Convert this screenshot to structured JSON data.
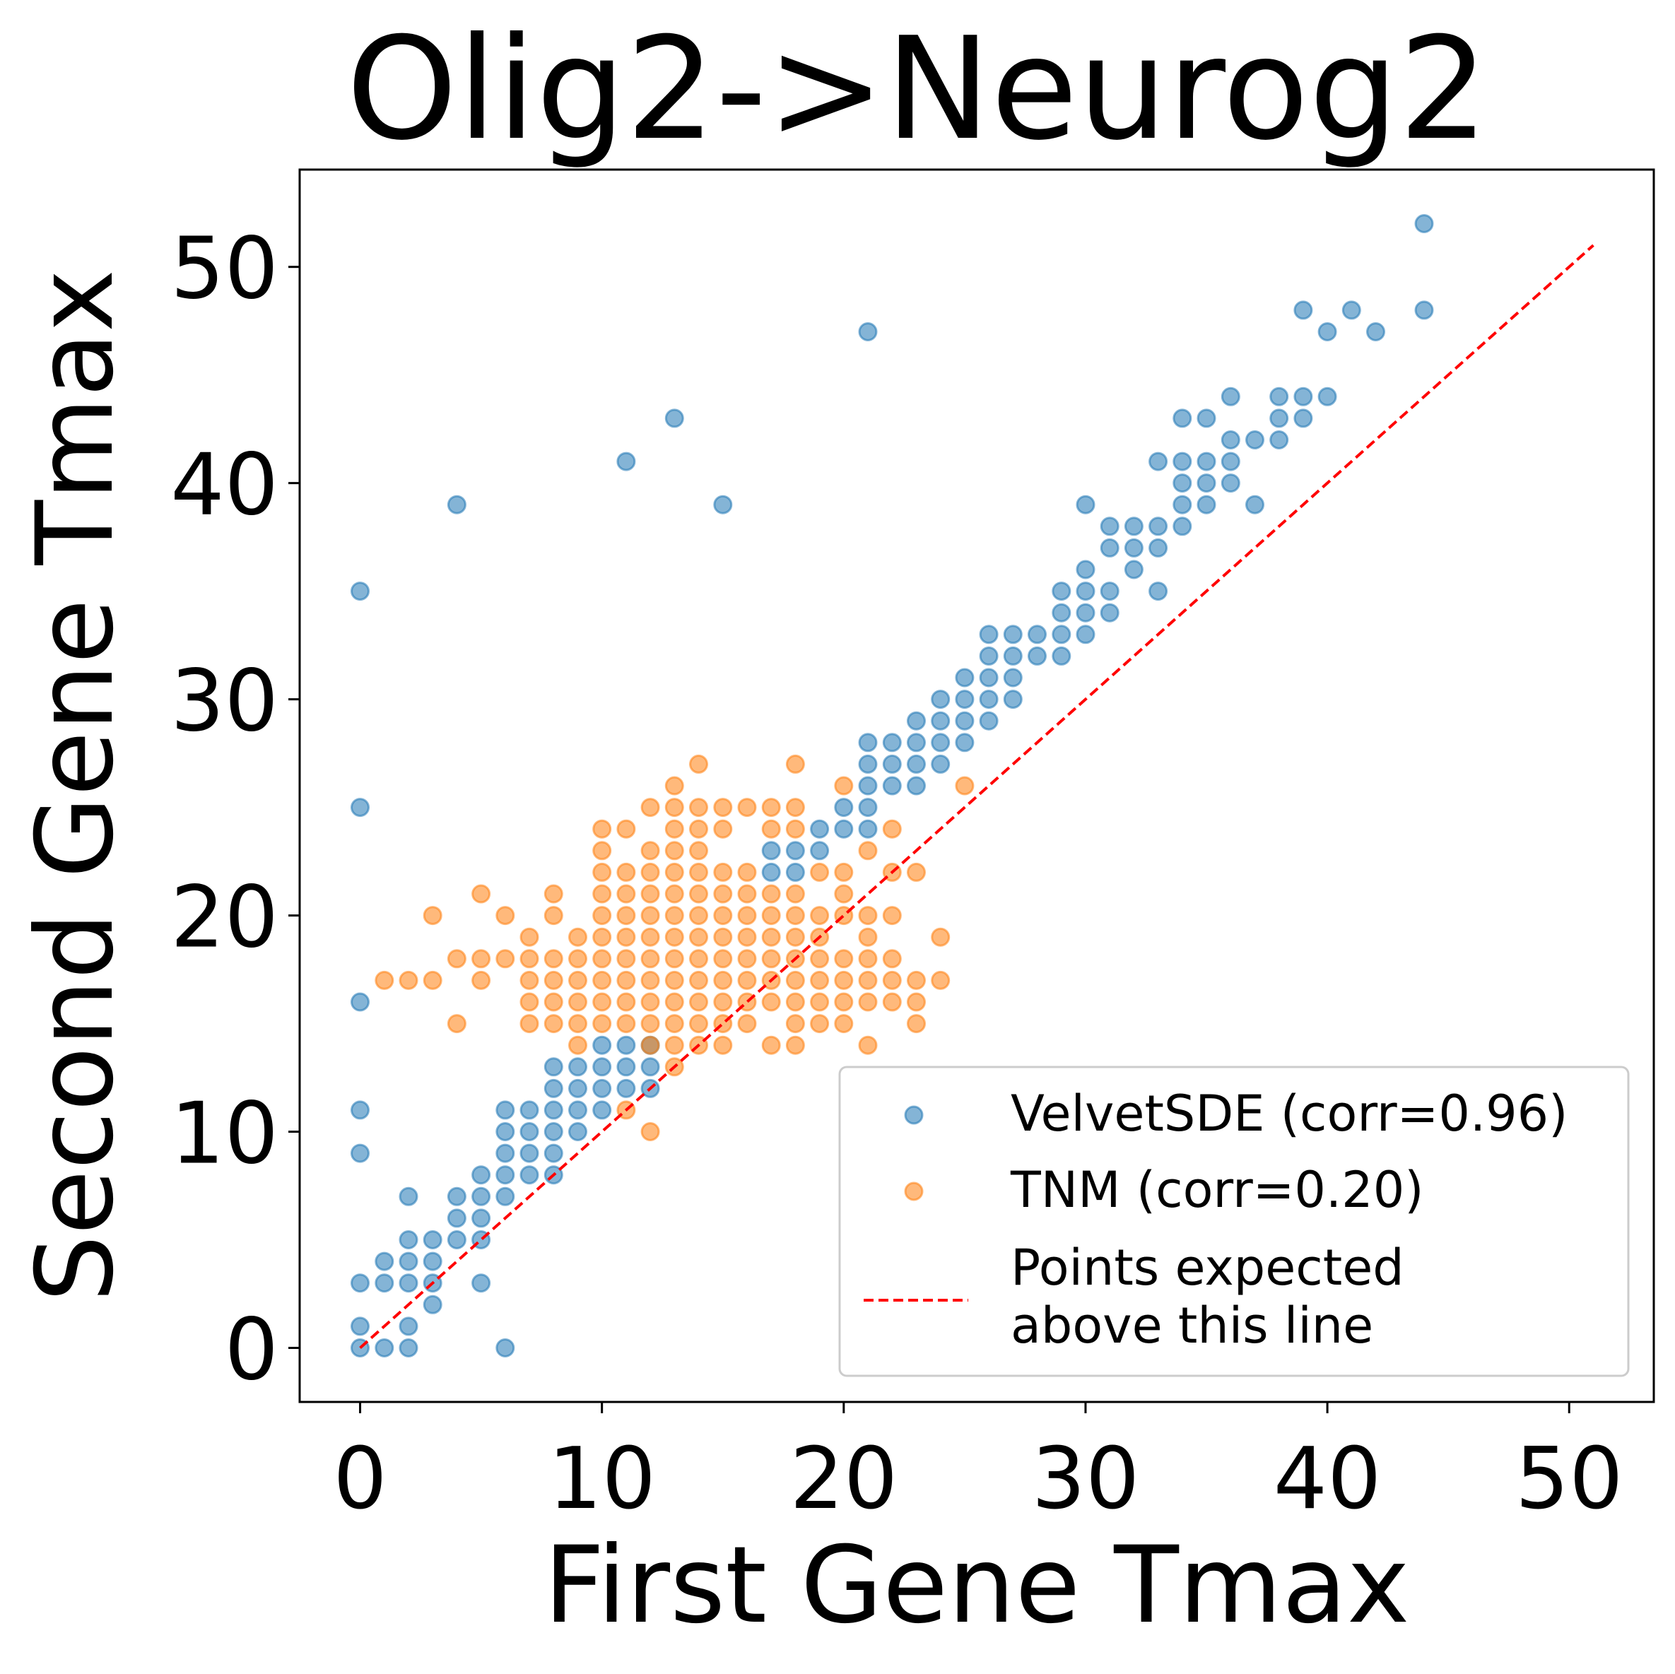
{
  "colors": {
    "velvet": "#1f77b4",
    "tnm": "#ff7f0e",
    "diag": "#ff0000"
  },
  "chart_data": {
    "type": "scatter",
    "title": "Olig2->Neurog2",
    "xlabel": "First Gene Tmax",
    "ylabel": "Second Gene Tmax",
    "xlim": [
      -2.5,
      53.5
    ],
    "ylim": [
      -2.5,
      54.5
    ],
    "xticks": [
      0,
      10,
      20,
      30,
      40,
      50
    ],
    "yticks": [
      0,
      10,
      20,
      30,
      40,
      50
    ],
    "grid": false,
    "legend_position": "lower-right",
    "series": [
      {
        "name": "VelvetSDE (corr=0.96)",
        "marker": "circle",
        "alpha": 0.55,
        "points": [
          [
            0,
            0
          ],
          [
            0,
            1
          ],
          [
            0,
            3
          ],
          [
            0,
            9
          ],
          [
            0,
            11
          ],
          [
            0,
            16
          ],
          [
            0,
            25
          ],
          [
            0,
            35
          ],
          [
            1,
            0
          ],
          [
            1,
            3
          ],
          [
            1,
            4
          ],
          [
            2,
            0
          ],
          [
            2,
            1
          ],
          [
            2,
            3
          ],
          [
            2,
            4
          ],
          [
            2,
            5
          ],
          [
            2,
            7
          ],
          [
            3,
            2
          ],
          [
            3,
            3
          ],
          [
            3,
            4
          ],
          [
            3,
            5
          ],
          [
            4,
            5
          ],
          [
            4,
            6
          ],
          [
            4,
            7
          ],
          [
            4,
            39
          ],
          [
            5,
            3
          ],
          [
            5,
            5
          ],
          [
            5,
            6
          ],
          [
            5,
            7
          ],
          [
            5,
            8
          ],
          [
            6,
            0
          ],
          [
            6,
            7
          ],
          [
            6,
            8
          ],
          [
            6,
            9
          ],
          [
            6,
            10
          ],
          [
            6,
            11
          ],
          [
            7,
            8
          ],
          [
            7,
            9
          ],
          [
            7,
            10
          ],
          [
            7,
            11
          ],
          [
            8,
            8
          ],
          [
            8,
            9
          ],
          [
            8,
            10
          ],
          [
            8,
            11
          ],
          [
            8,
            12
          ],
          [
            8,
            13
          ],
          [
            9,
            10
          ],
          [
            9,
            11
          ],
          [
            9,
            12
          ],
          [
            9,
            13
          ],
          [
            10,
            11
          ],
          [
            10,
            12
          ],
          [
            10,
            13
          ],
          [
            10,
            14
          ],
          [
            11,
            12
          ],
          [
            11,
            13
          ],
          [
            11,
            14
          ],
          [
            11,
            41
          ],
          [
            12,
            12
          ],
          [
            12,
            13
          ],
          [
            12,
            14
          ],
          [
            13,
            43
          ],
          [
            15,
            39
          ],
          [
            17,
            22
          ],
          [
            17,
            23
          ],
          [
            18,
            22
          ],
          [
            18,
            23
          ],
          [
            19,
            23
          ],
          [
            19,
            24
          ],
          [
            20,
            24
          ],
          [
            20,
            25
          ],
          [
            21,
            24
          ],
          [
            21,
            25
          ],
          [
            21,
            26
          ],
          [
            21,
            27
          ],
          [
            21,
            28
          ],
          [
            21,
            47
          ],
          [
            22,
            26
          ],
          [
            22,
            27
          ],
          [
            22,
            28
          ],
          [
            23,
            26
          ],
          [
            23,
            27
          ],
          [
            23,
            28
          ],
          [
            23,
            29
          ],
          [
            24,
            27
          ],
          [
            24,
            28
          ],
          [
            24,
            29
          ],
          [
            24,
            30
          ],
          [
            25,
            28
          ],
          [
            25,
            29
          ],
          [
            25,
            30
          ],
          [
            25,
            31
          ],
          [
            26,
            29
          ],
          [
            26,
            30
          ],
          [
            26,
            31
          ],
          [
            26,
            32
          ],
          [
            26,
            33
          ],
          [
            27,
            30
          ],
          [
            27,
            31
          ],
          [
            27,
            32
          ],
          [
            27,
            33
          ],
          [
            28,
            32
          ],
          [
            28,
            33
          ],
          [
            29,
            32
          ],
          [
            29,
            33
          ],
          [
            29,
            34
          ],
          [
            29,
            35
          ],
          [
            30,
            33
          ],
          [
            30,
            34
          ],
          [
            30,
            35
          ],
          [
            30,
            36
          ],
          [
            30,
            39
          ],
          [
            31,
            34
          ],
          [
            31,
            35
          ],
          [
            31,
            37
          ],
          [
            31,
            38
          ],
          [
            32,
            36
          ],
          [
            32,
            37
          ],
          [
            32,
            38
          ],
          [
            33,
            35
          ],
          [
            33,
            37
          ],
          [
            33,
            38
          ],
          [
            33,
            41
          ],
          [
            34,
            38
          ],
          [
            34,
            39
          ],
          [
            34,
            40
          ],
          [
            34,
            41
          ],
          [
            34,
            43
          ],
          [
            35,
            39
          ],
          [
            35,
            40
          ],
          [
            35,
            41
          ],
          [
            35,
            43
          ],
          [
            36,
            40
          ],
          [
            36,
            41
          ],
          [
            36,
            42
          ],
          [
            36,
            44
          ],
          [
            37,
            39
          ],
          [
            37,
            42
          ],
          [
            38,
            42
          ],
          [
            38,
            43
          ],
          [
            38,
            44
          ],
          [
            39,
            43
          ],
          [
            39,
            44
          ],
          [
            39,
            48
          ],
          [
            40,
            44
          ],
          [
            40,
            47
          ],
          [
            41,
            48
          ],
          [
            42,
            47
          ],
          [
            44,
            48
          ],
          [
            44,
            52
          ]
        ]
      },
      {
        "name": "TNM (corr=0.20)",
        "marker": "circle",
        "alpha": 0.55,
        "points": [
          [
            1,
            17
          ],
          [
            2,
            17
          ],
          [
            3,
            17
          ],
          [
            3,
            20
          ],
          [
            4,
            15
          ],
          [
            4,
            18
          ],
          [
            5,
            17
          ],
          [
            5,
            18
          ],
          [
            5,
            21
          ],
          [
            6,
            18
          ],
          [
            6,
            20
          ],
          [
            7,
            15
          ],
          [
            7,
            16
          ],
          [
            7,
            17
          ],
          [
            7,
            18
          ],
          [
            7,
            19
          ],
          [
            8,
            15
          ],
          [
            8,
            16
          ],
          [
            8,
            17
          ],
          [
            8,
            18
          ],
          [
            8,
            20
          ],
          [
            8,
            21
          ],
          [
            9,
            14
          ],
          [
            9,
            15
          ],
          [
            9,
            16
          ],
          [
            9,
            17
          ],
          [
            9,
            18
          ],
          [
            9,
            19
          ],
          [
            10,
            15
          ],
          [
            10,
            16
          ],
          [
            10,
            17
          ],
          [
            10,
            18
          ],
          [
            10,
            19
          ],
          [
            10,
            20
          ],
          [
            10,
            21
          ],
          [
            10,
            22
          ],
          [
            10,
            23
          ],
          [
            10,
            24
          ],
          [
            11,
            11
          ],
          [
            11,
            15
          ],
          [
            11,
            16
          ],
          [
            11,
            17
          ],
          [
            11,
            18
          ],
          [
            11,
            19
          ],
          [
            11,
            20
          ],
          [
            11,
            21
          ],
          [
            11,
            22
          ],
          [
            11,
            24
          ],
          [
            12,
            10
          ],
          [
            12,
            14
          ],
          [
            12,
            15
          ],
          [
            12,
            16
          ],
          [
            12,
            17
          ],
          [
            12,
            18
          ],
          [
            12,
            19
          ],
          [
            12,
            20
          ],
          [
            12,
            21
          ],
          [
            12,
            22
          ],
          [
            12,
            23
          ],
          [
            12,
            25
          ],
          [
            13,
            13
          ],
          [
            13,
            14
          ],
          [
            13,
            15
          ],
          [
            13,
            16
          ],
          [
            13,
            17
          ],
          [
            13,
            18
          ],
          [
            13,
            19
          ],
          [
            13,
            20
          ],
          [
            13,
            21
          ],
          [
            13,
            22
          ],
          [
            13,
            23
          ],
          [
            13,
            24
          ],
          [
            13,
            25
          ],
          [
            13,
            26
          ],
          [
            14,
            14
          ],
          [
            14,
            15
          ],
          [
            14,
            16
          ],
          [
            14,
            17
          ],
          [
            14,
            18
          ],
          [
            14,
            19
          ],
          [
            14,
            20
          ],
          [
            14,
            21
          ],
          [
            14,
            22
          ],
          [
            14,
            23
          ],
          [
            14,
            24
          ],
          [
            14,
            25
          ],
          [
            14,
            27
          ],
          [
            15,
            14
          ],
          [
            15,
            15
          ],
          [
            15,
            16
          ],
          [
            15,
            17
          ],
          [
            15,
            18
          ],
          [
            15,
            19
          ],
          [
            15,
            20
          ],
          [
            15,
            21
          ],
          [
            15,
            22
          ],
          [
            15,
            24
          ],
          [
            15,
            25
          ],
          [
            16,
            15
          ],
          [
            16,
            16
          ],
          [
            16,
            17
          ],
          [
            16,
            18
          ],
          [
            16,
            19
          ],
          [
            16,
            20
          ],
          [
            16,
            21
          ],
          [
            16,
            22
          ],
          [
            16,
            25
          ],
          [
            17,
            14
          ],
          [
            17,
            16
          ],
          [
            17,
            17
          ],
          [
            17,
            18
          ],
          [
            17,
            19
          ],
          [
            17,
            20
          ],
          [
            17,
            21
          ],
          [
            17,
            24
          ],
          [
            17,
            25
          ],
          [
            18,
            14
          ],
          [
            18,
            15
          ],
          [
            18,
            16
          ],
          [
            18,
            17
          ],
          [
            18,
            18
          ],
          [
            18,
            19
          ],
          [
            18,
            20
          ],
          [
            18,
            21
          ],
          [
            18,
            24
          ],
          [
            18,
            25
          ],
          [
            18,
            27
          ],
          [
            19,
            15
          ],
          [
            19,
            16
          ],
          [
            19,
            17
          ],
          [
            19,
            18
          ],
          [
            19,
            19
          ],
          [
            19,
            20
          ],
          [
            19,
            22
          ],
          [
            20,
            15
          ],
          [
            20,
            16
          ],
          [
            20,
            17
          ],
          [
            20,
            18
          ],
          [
            20,
            20
          ],
          [
            20,
            21
          ],
          [
            20,
            22
          ],
          [
            20,
            26
          ],
          [
            21,
            14
          ],
          [
            21,
            16
          ],
          [
            21,
            17
          ],
          [
            21,
            18
          ],
          [
            21,
            19
          ],
          [
            21,
            20
          ],
          [
            21,
            23
          ],
          [
            22,
            16
          ],
          [
            22,
            17
          ],
          [
            22,
            18
          ],
          [
            22,
            20
          ],
          [
            22,
            22
          ],
          [
            22,
            24
          ],
          [
            23,
            15
          ],
          [
            23,
            16
          ],
          [
            23,
            17
          ],
          [
            23,
            22
          ],
          [
            24,
            17
          ],
          [
            24,
            19
          ],
          [
            25,
            26
          ]
        ]
      },
      {
        "name": "Points expected above this line",
        "marker": "dashed-line",
        "x": [
          0,
          51
        ],
        "y": [
          0,
          51
        ]
      }
    ],
    "legend": [
      {
        "label": "VelvetSDE (corr=0.96)"
      },
      {
        "label": "TNM (corr=0.20)"
      },
      {
        "label_lines": [
          "Points expected",
          "above this line"
        ]
      }
    ]
  }
}
